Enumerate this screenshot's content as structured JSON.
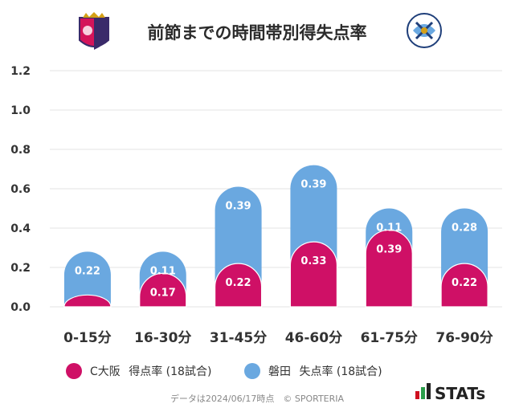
{
  "chart_data": {
    "type": "bar",
    "title": "前節までの時間帯別得失点率",
    "categories": [
      "0-15分",
      "16-30分",
      "31-45分",
      "46-60分",
      "61-75分",
      "76-90分"
    ],
    "series": [
      {
        "name": "C大阪 得点率 (18試合)",
        "team": "C大阪",
        "label": "得点率 (18試合)",
        "color": "#cf1066",
        "values": [
          0.06,
          0.17,
          0.22,
          0.33,
          0.39,
          0.22
        ],
        "labels": [
          "",
          "0.17",
          "0.22",
          "0.33",
          "0.39",
          "0.22"
        ]
      },
      {
        "name": "磐田 失点率 (18試合)",
        "team": "磐田",
        "label": "失点率 (18試合)",
        "color": "#6aa8e0",
        "values": [
          0.22,
          0.11,
          0.39,
          0.39,
          0.11,
          0.28
        ],
        "labels": [
          "0.22",
          "0.11",
          "0.39",
          "0.39",
          "0.11",
          "0.28"
        ]
      }
    ],
    "yticks": [
      "0.0",
      "0.2",
      "0.4",
      "0.6",
      "0.8",
      "1.0",
      "1.2"
    ],
    "ylim": [
      0,
      1.2
    ],
    "grid": true,
    "stacked": true,
    "legend_position": "bottom"
  },
  "footer": {
    "text": "データは2024/06/17時点　© SPORTERIA"
  },
  "brand": {
    "name": "STATs"
  }
}
